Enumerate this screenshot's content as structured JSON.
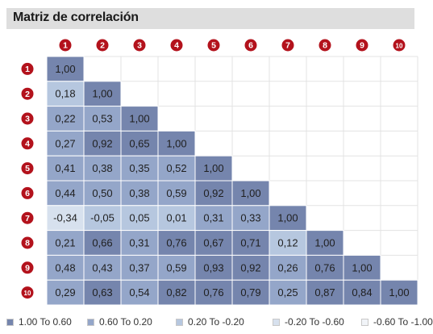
{
  "title": "Matriz de correlación",
  "chart_data": {
    "type": "heatmap",
    "labels": [
      "1",
      "2",
      "3",
      "4",
      "5",
      "6",
      "7",
      "8",
      "9",
      "10"
    ],
    "matrix": [
      [
        "1,00"
      ],
      [
        "0,18",
        "1,00"
      ],
      [
        "0,22",
        "0,53",
        "1,00"
      ],
      [
        "0,27",
        "0,92",
        "0,65",
        "1,00"
      ],
      [
        "0,41",
        "0,38",
        "0,35",
        "0,52",
        "1,00"
      ],
      [
        "0,44",
        "0,50",
        "0,38",
        "0,59",
        "0,92",
        "1,00"
      ],
      [
        "-0,34",
        "-0,05",
        "0,05",
        "0,01",
        "0,31",
        "0,33",
        "1,00"
      ],
      [
        "0,21",
        "0,66",
        "0,31",
        "0,76",
        "0,67",
        "0,71",
        "0,12",
        "1,00"
      ],
      [
        "0,48",
        "0,43",
        "0,37",
        "0,59",
        "0,93",
        "0,92",
        "0,26",
        "0,76",
        "1,00"
      ],
      [
        "0,29",
        "0,63",
        "0,54",
        "0,82",
        "0,76",
        "0,79",
        "0,25",
        "0,87",
        "0,84",
        "1,00"
      ]
    ],
    "legend": [
      {
        "label": "1.00 To 0.60",
        "min": 0.6,
        "max": 1.0,
        "color": "#7585ad"
      },
      {
        "label": "0.60 To 0.20",
        "min": 0.2,
        "max": 0.6,
        "color": "#94a6c9"
      },
      {
        "label": "0.20 To -0.20",
        "min": -0.2,
        "max": 0.2,
        "color": "#b6c7df"
      },
      {
        "label": "-0.20 To -0.60",
        "min": -0.6,
        "max": -0.2,
        "color": "#d7e1ee"
      },
      {
        "label": "-0.60 To -1.00",
        "min": -1.0,
        "max": -0.6,
        "color": "#f1f4f8"
      }
    ],
    "badge_color": "#b3121c"
  }
}
